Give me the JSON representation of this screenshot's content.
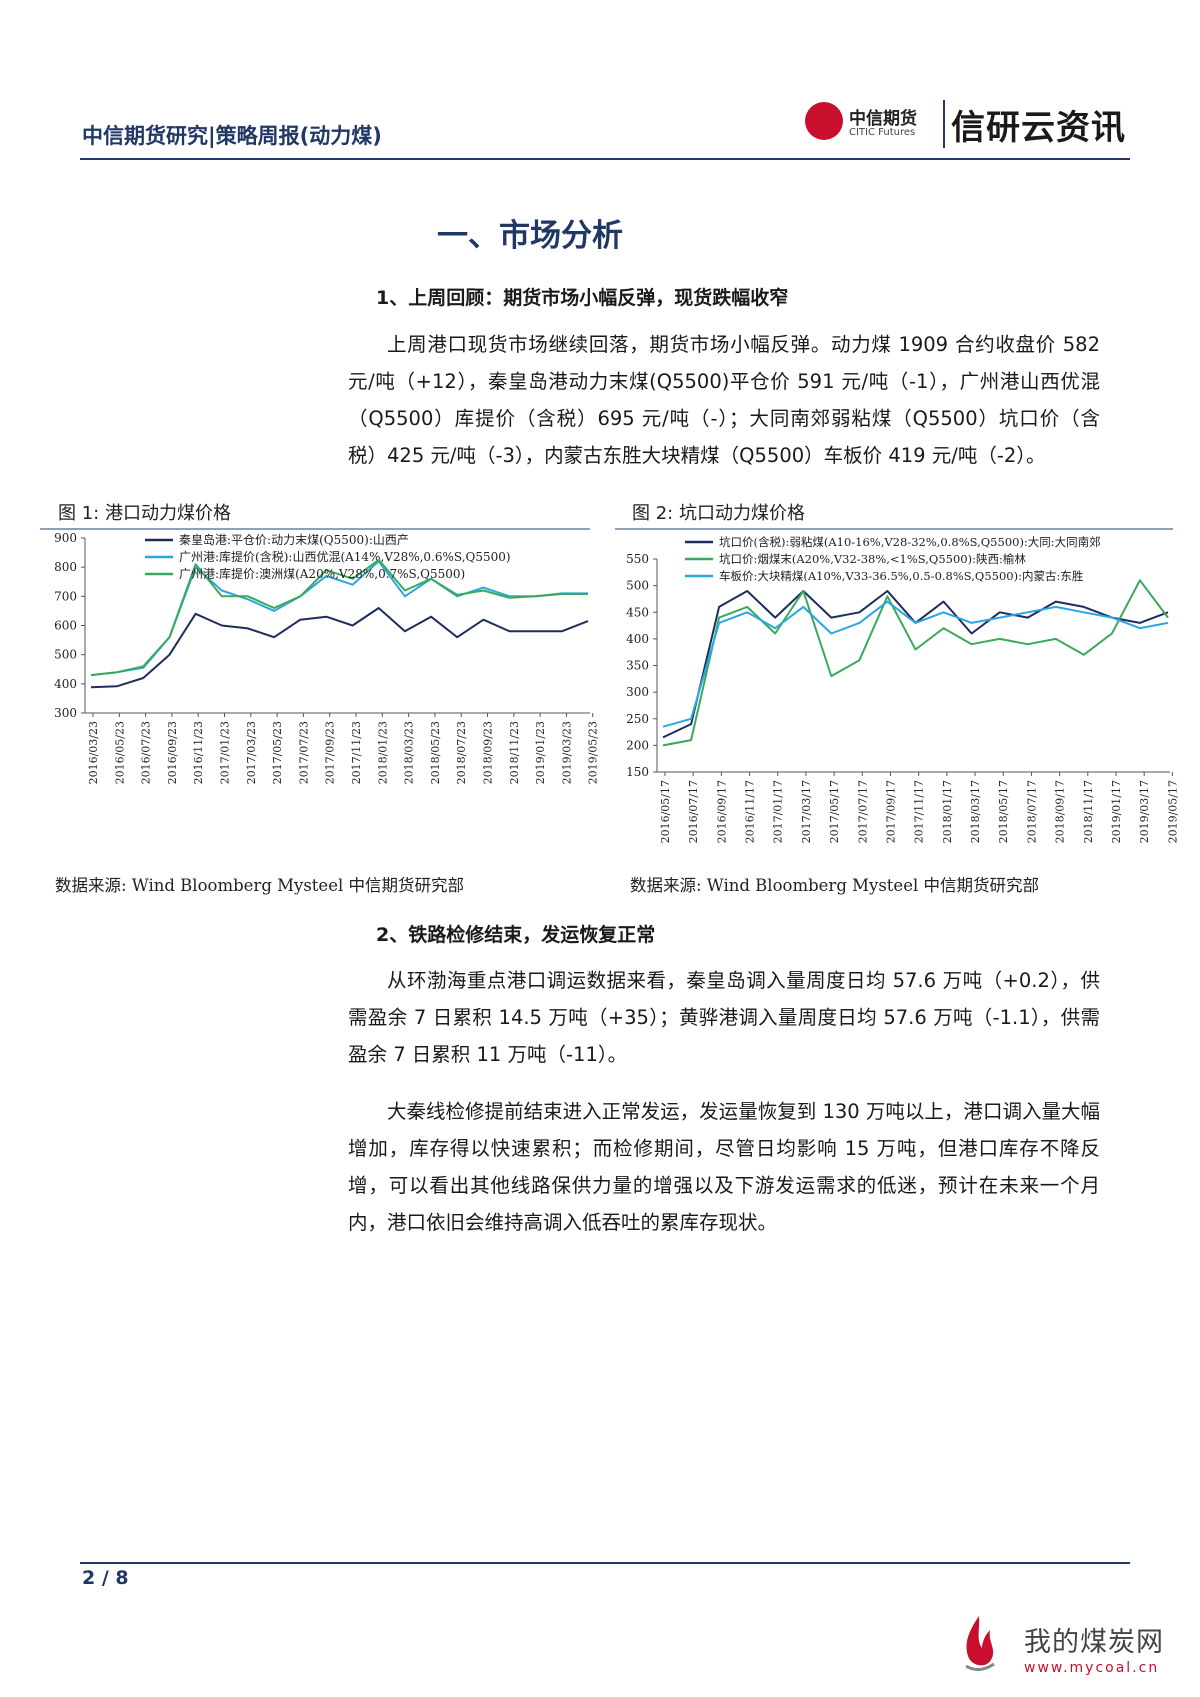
{
  "header": {
    "title": "中信期货研究|策略周报(动力煤)",
    "logo_cn": "中信期货",
    "logo_en": "CITIC Futures",
    "logo_side": "信研云资讯"
  },
  "section_title": "一、市场分析",
  "subsection1_title": "1、上周回顾：期货市场小幅反弹，现货跌幅收窄",
  "para1": "上周港口现货市场继续回落，期货市场小幅反弹。动力煤 1909 合约收盘价 582 元/吨（+12），秦皇岛港动力末煤(Q5500)平仓价 591 元/吨（-1），广州港山西优混（Q5500）库提价（含税）695 元/吨（-）；大同南郊弱粘煤（Q5500）坑口价（含税）425 元/吨（-3），内蒙古东胜大块精煤（Q5500）车板价 419 元/吨（-2）。",
  "figure1": {
    "caption": "图 1:  港口动力煤价格",
    "source": "数据来源:  Wind Bloomberg Mysteel 中信期货研究部"
  },
  "figure2": {
    "caption": "图 2:  坑口动力煤价格",
    "source": "数据来源:  Wind Bloomberg Mysteel 中信期货研究部"
  },
  "subsection2_title": "2、铁路检修结束，发运恢复正常",
  "para2": "从环渤海重点港口调运数据来看，秦皇岛调入量周度日均 57.6 万吨（+0.2），供需盈余 7 日累积 14.5 万吨（+35）；黄骅港调入量周度日均 57.6 万吨（-1.1），供需盈余 7 日累积 11 万吨（-11）。",
  "para3": "大秦线检修提前结束进入正常发运，发运量恢复到 130 万吨以上，港口调入量大幅增加，库存得以快速累积；而检修期间，尽管日均影响 15 万吨，但港口库存不降反增，可以看出其他线路保供力量的增强以及下游发运需求的低迷，预计在未来一个月内，港口依旧会维持高调入低吞吐的累库存现状。",
  "footer": {
    "page": "2 / 8"
  },
  "watermark": {
    "text": "我的煤炭网",
    "url": "www.mycoal.cn"
  },
  "chart_data": [
    {
      "type": "line",
      "x_tick_labels": [
        "2016/03/23",
        "2016/05/23",
        "2016/07/23",
        "2016/09/23",
        "2016/11/23",
        "2017/01/23",
        "2017/03/23",
        "2017/05/23",
        "2017/07/23",
        "2017/09/23",
        "2017/11/23",
        "2018/01/23",
        "2018/03/23",
        "2018/05/23",
        "2018/07/23",
        "2018/09/23",
        "2018/11/23",
        "2019/01/23",
        "2019/03/23",
        "2019/05/23"
      ],
      "y_ticks": [
        300,
        400,
        500,
        600,
        700,
        800,
        900
      ],
      "ylim": [
        300,
        900
      ],
      "series": [
        {
          "name": "秦皇岛港:平仓价:动力末煤(Q5500):山西产",
          "color": "#1f2d5c",
          "values": [
            388,
            392,
            420,
            500,
            640,
            600,
            590,
            560,
            620,
            630,
            600,
            660,
            580,
            630,
            560,
            620,
            580,
            580,
            580,
            615
          ]
        },
        {
          "name": "广州港:库提价(含税):山西优混(A14%,V28%,0.6%S,Q5500)",
          "color": "#2aa7e0",
          "values": [
            430,
            440,
            455,
            560,
            800,
            720,
            690,
            650,
            700,
            770,
            740,
            820,
            700,
            760,
            700,
            730,
            700,
            700,
            710,
            710
          ]
        },
        {
          "name": "广州港:库提价:澳洲煤(A20%,V28%,0.7%S,Q5500)",
          "color": "#3aaa5a",
          "values": [
            430,
            440,
            460,
            560,
            810,
            700,
            700,
            660,
            700,
            790,
            760,
            825,
            720,
            760,
            705,
            720,
            695,
            700,
            708,
            708
          ]
        }
      ]
    },
    {
      "type": "line",
      "x_tick_labels": [
        "2016/05/17",
        "2016/07/17",
        "2016/09/17",
        "2016/11/17",
        "2017/01/17",
        "2017/03/17",
        "2017/05/17",
        "2017/07/17",
        "2017/09/17",
        "2017/11/17",
        "2018/01/17",
        "2018/03/17",
        "2018/05/17",
        "2018/07/17",
        "2018/09/17",
        "2018/11/17",
        "2019/01/17",
        "2019/03/17",
        "2019/05/17"
      ],
      "y_ticks": [
        150,
        200,
        250,
        300,
        350,
        400,
        450,
        500,
        550
      ],
      "ylim": [
        150,
        550
      ],
      "series": [
        {
          "name": "坑口价(含税):弱粘煤(A10-16%,V28-32%,0.8%S,Q5500):大同:大同南郊",
          "color": "#1f2d5c",
          "values": [
            215,
            240,
            460,
            490,
            440,
            490,
            440,
            450,
            490,
            430,
            470,
            410,
            450,
            440,
            470,
            460,
            440,
            430,
            450
          ]
        },
        {
          "name": "坑口价:烟煤末(A20%,V32-38%,<1%S,Q5500):陕西:榆林",
          "color": "#3aaa5a",
          "values": [
            200,
            210,
            440,
            460,
            410,
            490,
            330,
            360,
            480,
            380,
            420,
            390,
            400,
            390,
            400,
            370,
            410,
            510,
            440
          ]
        },
        {
          "name": "车板价:大块精煤(A10%,V33-36.5%,0.5-0.8%S,Q5500):内蒙古:东胜",
          "color": "#2aa7e0",
          "values": [
            235,
            250,
            430,
            450,
            420,
            460,
            410,
            430,
            470,
            430,
            450,
            430,
            440,
            450,
            460,
            450,
            440,
            420,
            430
          ]
        }
      ]
    }
  ]
}
